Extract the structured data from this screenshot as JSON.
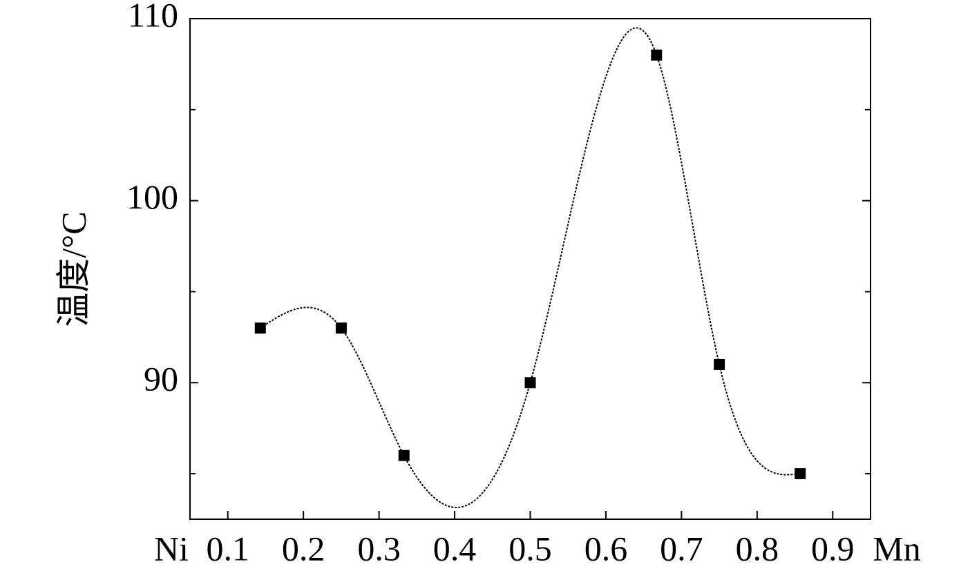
{
  "chart_data": {
    "type": "line",
    "ylabel": "温度/°C",
    "x": [
      0.143,
      0.25,
      0.333,
      0.5,
      0.667,
      0.75,
      0.857
    ],
    "series": [
      {
        "color": "#000000",
        "values": [
          93,
          93,
          86,
          90,
          108,
          91,
          85
        ]
      }
    ],
    "xlim": [
      0.05,
      0.95
    ],
    "xticks": [
      0.1,
      0.2,
      0.3,
      0.4,
      0.5,
      0.6,
      0.7,
      0.8,
      0.9
    ],
    "x_left_label": "Ni",
    "x_right_label": "Mn",
    "ylim": [
      82.5,
      110
    ],
    "yticks": [
      90,
      100,
      110
    ],
    "y_minor_ticks": [
      85,
      95,
      105
    ],
    "smooth": true
  }
}
